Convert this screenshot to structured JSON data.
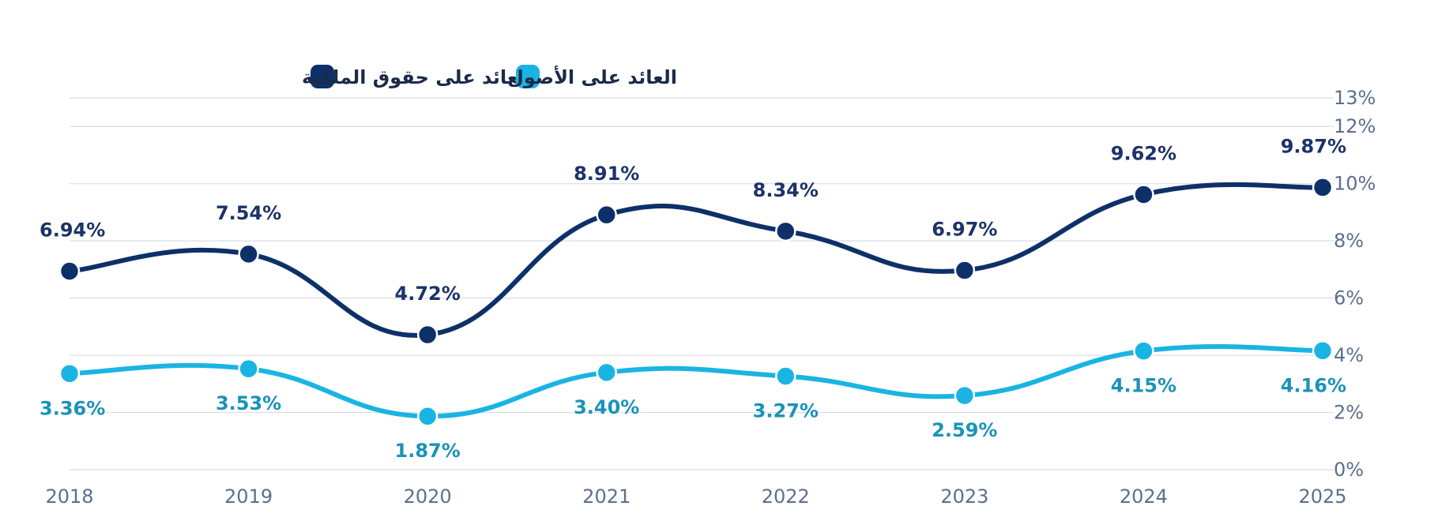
{
  "chart_data": {
    "type": "line",
    "x": [
      "2018",
      "2019",
      "2020",
      "2021",
      "2022",
      "2023",
      "2024",
      "2025"
    ],
    "y_ticks": [
      "0%",
      "2%",
      "4%",
      "6%",
      "8%",
      "10%",
      "12%",
      "13%"
    ],
    "ylim": [
      0,
      13
    ],
    "grid": true,
    "legend_position": "top-left",
    "series": [
      {
        "name": "العائد على حقوق الملكية",
        "color": "#0d3068",
        "label_color": "#1b3368",
        "label_position": "above",
        "values": [
          6.94,
          7.54,
          4.72,
          8.91,
          8.34,
          6.97,
          9.62,
          9.87
        ],
        "labels": [
          "6.94%",
          "7.54%",
          "4.72%",
          "8.91%",
          "8.34%",
          "6.97%",
          "9.62%",
          "9.87%"
        ]
      },
      {
        "name": "العائد على الأصول",
        "color": "#1ab4e3",
        "label_color": "#1a93b8",
        "label_position": "below",
        "values": [
          3.36,
          3.53,
          1.87,
          3.4,
          3.27,
          2.59,
          4.15,
          4.16
        ],
        "labels": [
          "3.36%",
          "3.53%",
          "1.87%",
          "3.40%",
          "3.27%",
          "2.59%",
          "4.15%",
          "4.16%"
        ]
      }
    ]
  }
}
